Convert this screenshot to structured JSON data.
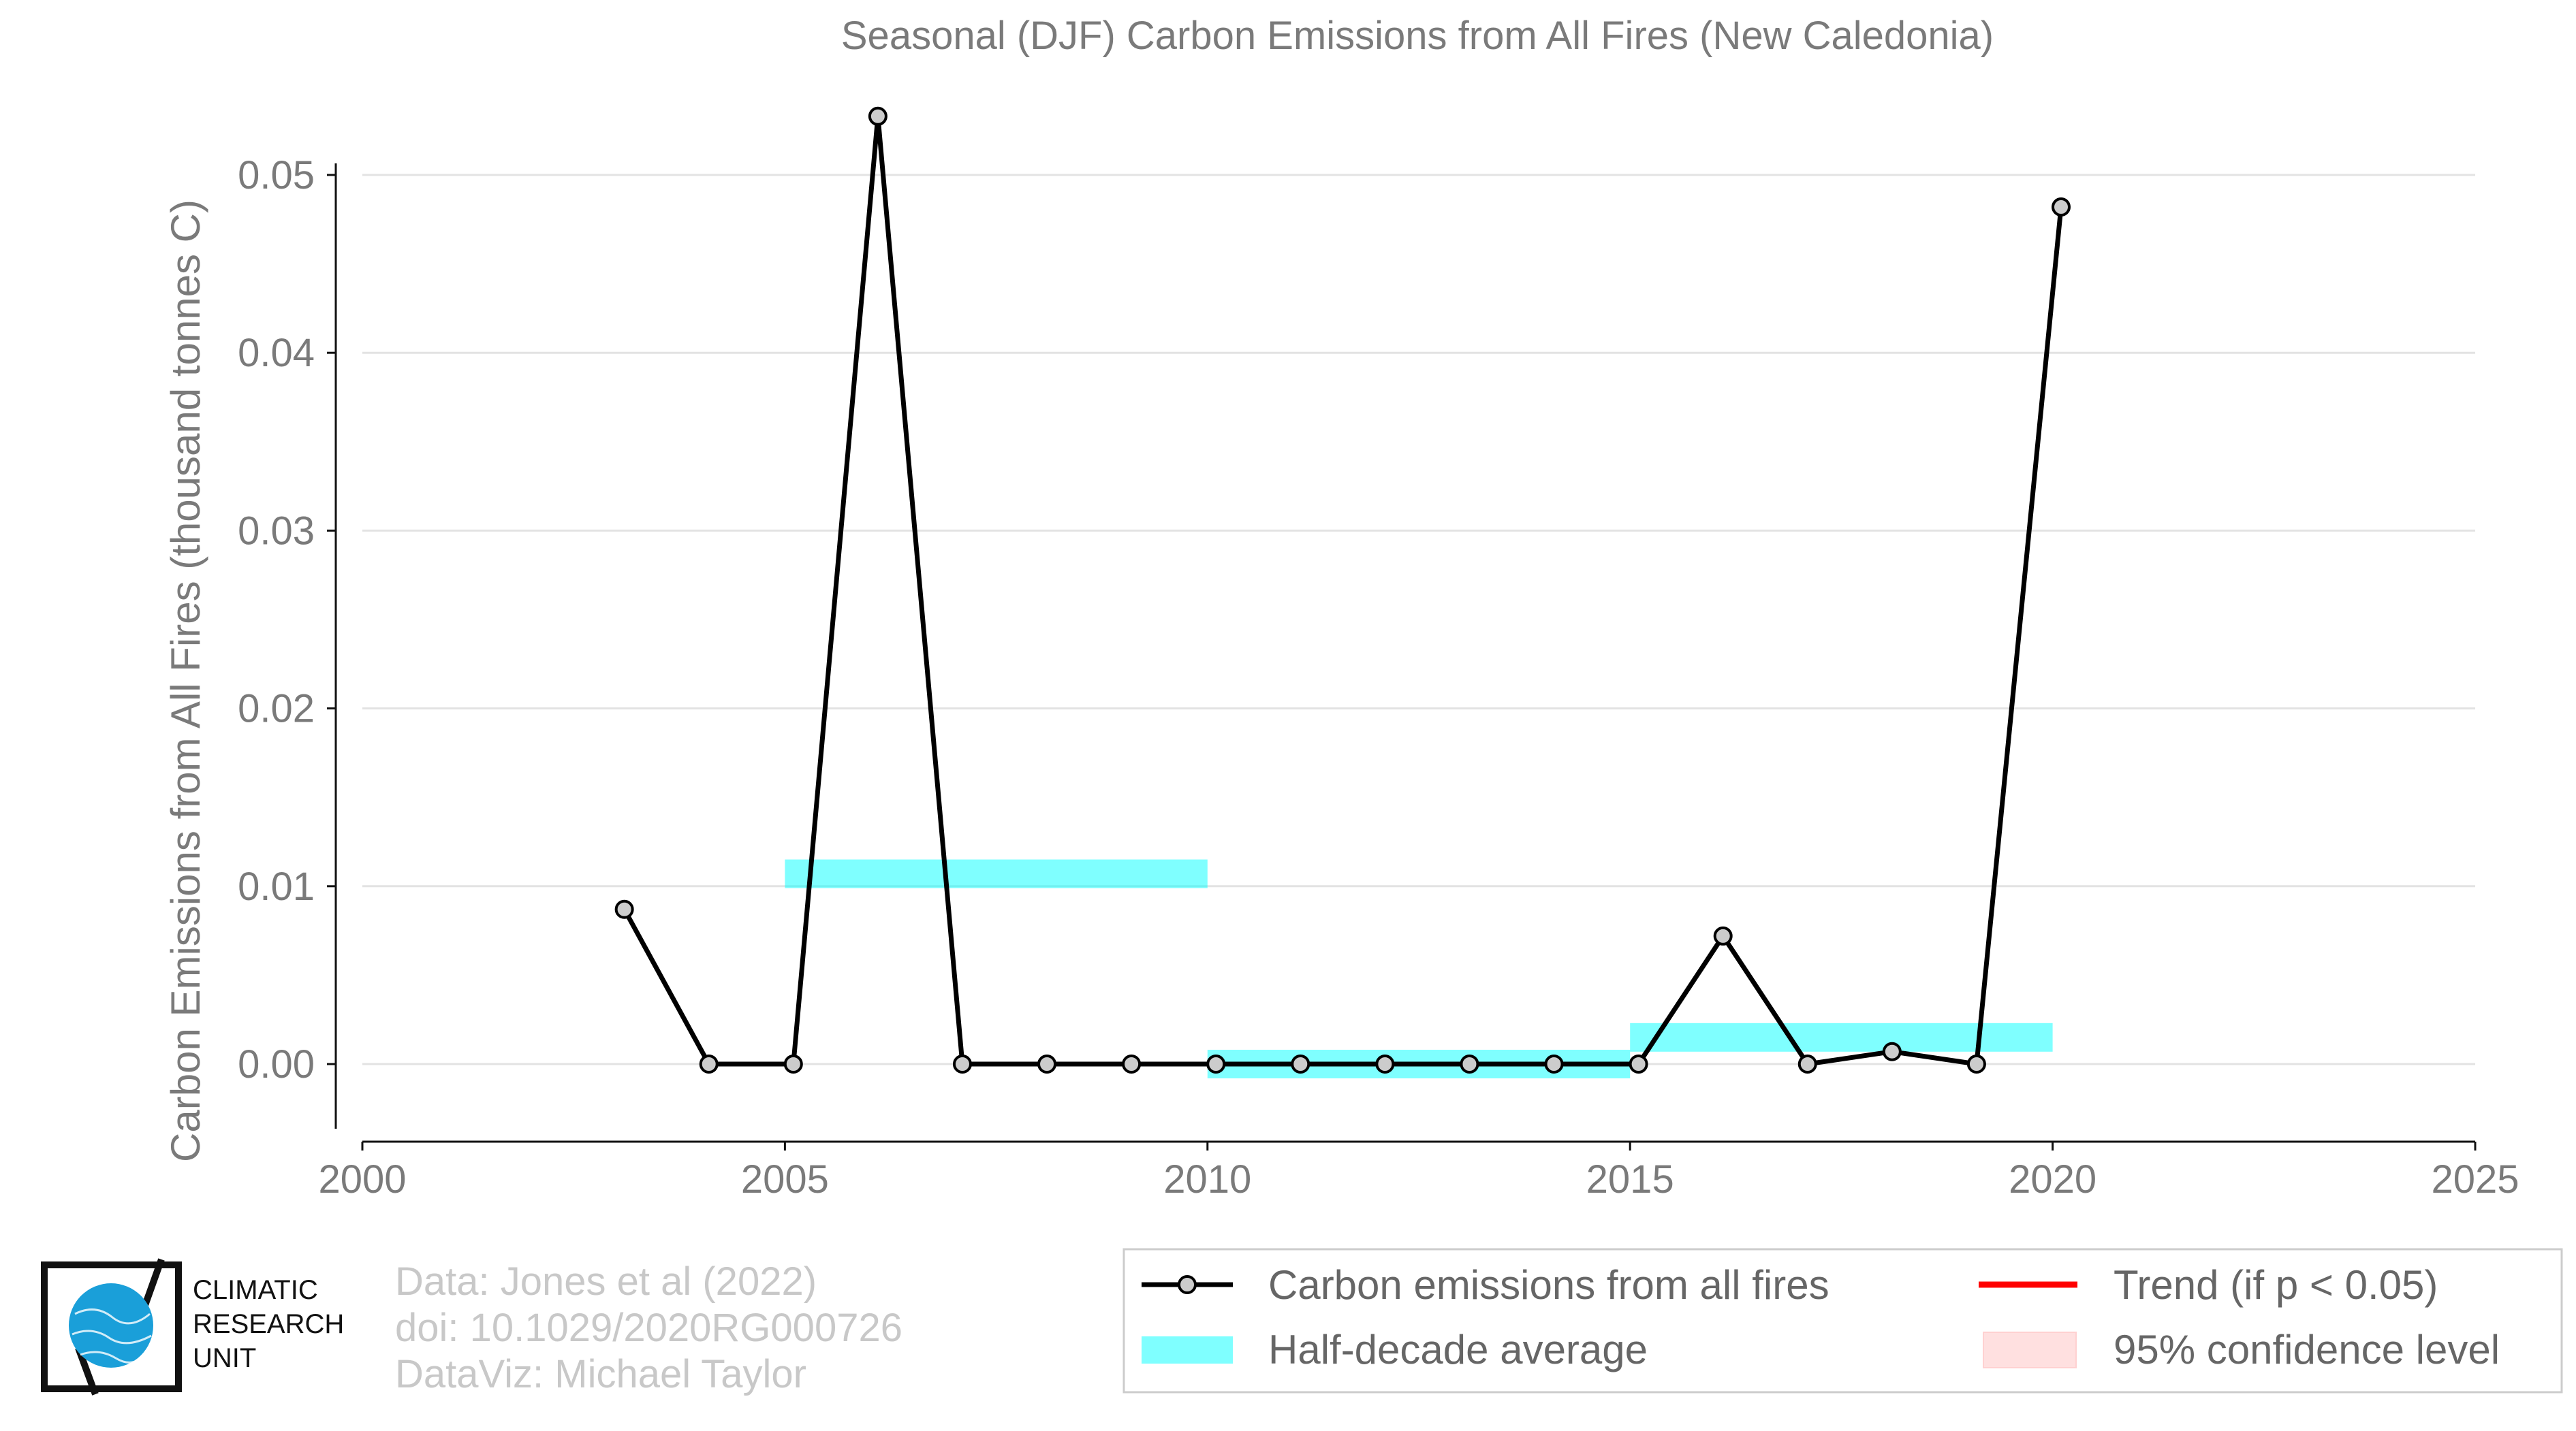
{
  "chart_data": {
    "type": "line",
    "title": "Seasonal (DJF) Carbon Emissions from All Fires (New Caledonia)",
    "xlabel": "",
    "ylabel": "Carbon Emissions from All Fires (thousand tonnes C)",
    "xlim": [
      2000,
      2025
    ],
    "ylim": [
      -0.0043,
      0.054
    ],
    "x_ticks": [
      2000,
      2005,
      2010,
      2015,
      2020,
      2025
    ],
    "x_tick_labels": [
      "2000",
      "2005",
      "2010",
      "2015",
      "2020",
      "2025"
    ],
    "y_ticks": [
      0.0,
      0.01,
      0.02,
      0.03,
      0.04,
      0.05
    ],
    "y_tick_labels": [
      "0.00",
      "0.01",
      "0.02",
      "0.03",
      "0.04",
      "0.05"
    ],
    "grid": "horizontal",
    "series": [
      {
        "name": "Carbon emissions from all fires",
        "color": "#000000",
        "marker_fill": "#cccccc",
        "x": [
          2003,
          2004,
          2005,
          2006,
          2007,
          2008,
          2009,
          2010,
          2011,
          2012,
          2013,
          2014,
          2015,
          2016,
          2017,
          2018,
          2019,
          2020
        ],
        "y": [
          0.0087,
          0.0,
          0.0,
          0.0533,
          0.0,
          0.0,
          0.0,
          0.0,
          0.0,
          0.0,
          0.0,
          0.0,
          0.0,
          0.0072,
          0.0,
          0.0007,
          0.0,
          0.0482
        ]
      }
    ],
    "half_decade_average": {
      "name": "Half-decade average",
      "color": "#00ffff",
      "segments": [
        {
          "x_start": 2005,
          "x_end": 2010,
          "y": 0.0107
        },
        {
          "x_start": 2010,
          "x_end": 2015,
          "y": 0.0
        },
        {
          "x_start": 2015,
          "x_end": 2020,
          "y": 0.0015
        }
      ]
    },
    "legend": {
      "placement": "bottom-right",
      "entries": [
        {
          "label": "Carbon emissions from all fires",
          "kind": "line-marker",
          "color": "#000000"
        },
        {
          "label": "Trend (if p < 0.05)",
          "kind": "line",
          "color": "#ff0000"
        },
        {
          "label": "Half-decade average",
          "kind": "band",
          "color": "#00ffff"
        },
        {
          "label": "95% confidence level",
          "kind": "band",
          "color": "#ffcccc"
        }
      ]
    }
  },
  "credits": {
    "lines": [
      "Data: Jones et al (2022)",
      "doi: 10.1029/2020RG000726",
      "DataViz: Michael Taylor"
    ]
  },
  "logo": {
    "lines": [
      "CLIMATIC",
      "RESEARCH",
      "UNIT"
    ],
    "color": "#1a9fd9"
  }
}
